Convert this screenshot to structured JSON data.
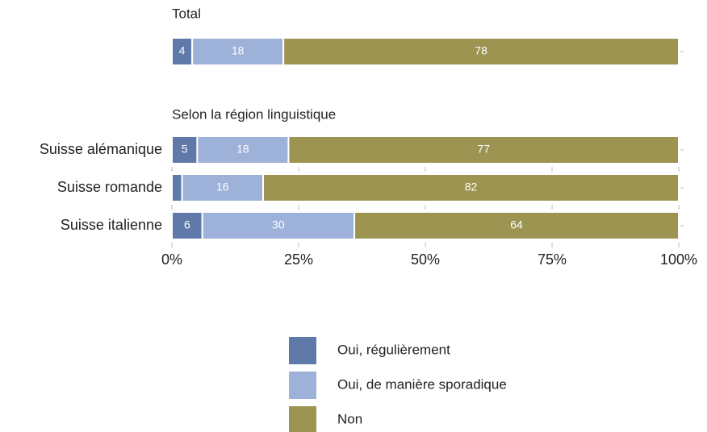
{
  "chart_data": {
    "type": "bar",
    "orientation": "horizontal",
    "stacked": true,
    "group_titles": [
      "Total",
      "Selon la région linguistique"
    ],
    "categories": [
      null,
      "Suisse alémanique",
      "Suisse romande",
      "Suisse italienne"
    ],
    "series": [
      {
        "name": "Oui, régulièrement",
        "color": "#5f79a8",
        "values": [
          4,
          5,
          2,
          6
        ]
      },
      {
        "name": "Oui, de manière sporadique",
        "color": "#9db1d9",
        "values": [
          18,
          18,
          16,
          30
        ]
      },
      {
        "name": "Non",
        "color": "#9c9450",
        "values": [
          78,
          77,
          82,
          64
        ]
      }
    ],
    "xlim": [
      0,
      100
    ],
    "xticks": [
      {
        "value": 0,
        "label": "0%"
      },
      {
        "value": 25,
        "label": "25%"
      },
      {
        "value": 50,
        "label": "50%"
      },
      {
        "value": 75,
        "label": "75%"
      },
      {
        "value": 100,
        "label": "100%"
      }
    ],
    "legend": "bottom"
  }
}
